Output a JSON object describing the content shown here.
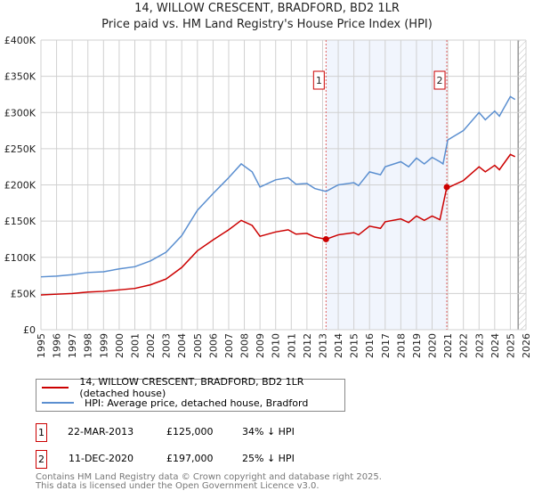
{
  "title": "14, WILLOW CRESCENT, BRADFORD, BD2 1LR",
  "subtitle": "Price paid vs. HM Land Registry's House Price Index (HPI)",
  "chart_data": {
    "type": "line",
    "title": "14, WILLOW CRESCENT, BRADFORD, BD2 1LR",
    "subtitle": "Price paid vs. HM Land Registry's House Price Index (HPI)",
    "xlim": [
      1995,
      2026
    ],
    "ylim": [
      0,
      400000
    ],
    "x_ticks": [
      "1995",
      "1996",
      "1997",
      "1998",
      "1999",
      "2000",
      "2001",
      "2002",
      "2003",
      "2004",
      "2005",
      "2006",
      "2007",
      "2008",
      "2009",
      "2010",
      "2011",
      "2012",
      "2013",
      "2014",
      "2015",
      "2016",
      "2017",
      "2018",
      "2019",
      "2020",
      "2021",
      "2022",
      "2023",
      "2024",
      "2025",
      "2026"
    ],
    "y_ticks": [
      "£0",
      "£50K",
      "£100K",
      "£150K",
      "£200K",
      "£250K",
      "£300K",
      "£350K",
      "£400K"
    ],
    "grid": true,
    "legend_placement": "bottom",
    "series": [
      {
        "name": "14, WILLOW CRESCENT, BRADFORD, BD2 1LR (detached house)",
        "color": "#cc0000",
        "x": [
          1995,
          1996,
          1997,
          1998,
          1999,
          2000,
          2001,
          2002,
          2003,
          2004,
          2005,
          2006,
          2007,
          2007.8,
          2008.5,
          2009,
          2010,
          2010.8,
          2011.3,
          2012,
          2012.5,
          2013.22,
          2014,
          2015,
          2015.3,
          2016,
          2016.7,
          2017,
          2018,
          2018.5,
          2019,
          2019.5,
          2020,
          2020.5,
          2020.94,
          2021,
          2021.3,
          2022,
          2023,
          2023.4,
          2024,
          2024.3,
          2025,
          2025.3
        ],
        "y": [
          48000,
          49000,
          50000,
          52000,
          53000,
          55000,
          57000,
          62000,
          70000,
          86000,
          109000,
          124000,
          138000,
          151000,
          144000,
          129000,
          135000,
          138000,
          132000,
          133000,
          128000,
          125000,
          131000,
          134000,
          131000,
          143000,
          140000,
          149000,
          153000,
          148000,
          157000,
          151000,
          157000,
          152000,
          197000,
          196000,
          199000,
          206000,
          225000,
          218000,
          227000,
          221000,
          242000,
          239000
        ]
      },
      {
        "name": "HPI: Average price, detached house, Bradford",
        "color": "#5b8fd0",
        "x": [
          1995,
          1996,
          1997,
          1998,
          1999,
          2000,
          2001,
          2002,
          2003,
          2004,
          2005,
          2006,
          2007,
          2007.8,
          2008.5,
          2009,
          2010,
          2010.8,
          2011.3,
          2012,
          2012.5,
          2013.22,
          2014,
          2015,
          2015.3,
          2016,
          2016.7,
          2017,
          2018,
          2018.5,
          2019,
          2019.5,
          2020,
          2020.5,
          2020.7,
          2021,
          2021.3,
          2022,
          2023,
          2023.4,
          2024,
          2024.3,
          2025,
          2025.3
        ],
        "y": [
          73000,
          74000,
          76000,
          79000,
          80000,
          84000,
          87000,
          95000,
          107000,
          130000,
          165000,
          188000,
          210000,
          229000,
          218000,
          197000,
          207000,
          210000,
          201000,
          202000,
          195000,
          191000,
          200000,
          203000,
          199000,
          218000,
          214000,
          225000,
          232000,
          225000,
          237000,
          229000,
          238000,
          232000,
          229000,
          262000,
          266000,
          275000,
          300000,
          290000,
          302000,
          295000,
          322000,
          318000
        ]
      }
    ],
    "sales": [
      {
        "label": "1",
        "x": 2013.22,
        "y": 125000,
        "date": "22-MAR-2013",
        "price": "£125,000",
        "hpi": "34% ↓ HPI"
      },
      {
        "label": "2",
        "x": 2020.94,
        "y": 197000,
        "date": "11-DEC-2020",
        "price": "£197,000",
        "hpi": "25% ↓ HPI"
      }
    ],
    "shaded_range": [
      2013.22,
      2020.94
    ],
    "forecast_hatch_from": 2025.5
  },
  "footer1": "Contains HM Land Registry data © Crown copyright and database right 2025.",
  "footer2": "This data is licensed under the Open Government Licence v3.0."
}
